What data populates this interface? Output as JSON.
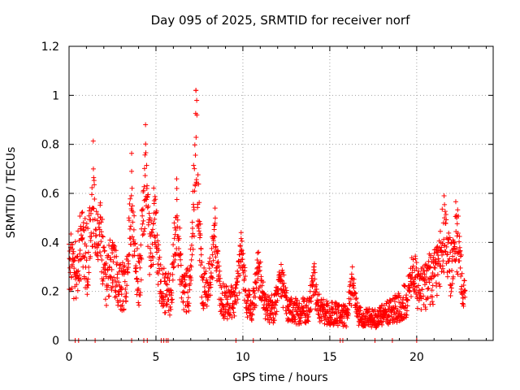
{
  "chart_data": {
    "type": "scatter",
    "title": "Day 095 of 2025, SRMTID for receiver norf",
    "xlabel": "GPS time / hours",
    "ylabel": "SRMTID / TECUs",
    "xlim": [
      0,
      24.4
    ],
    "ylim": [
      0,
      1.2
    ],
    "xticks": [
      0,
      5,
      10,
      15,
      20
    ],
    "xtick_labels": [
      "0",
      "5",
      "10",
      "15",
      "20"
    ],
    "yticks": [
      0,
      0.2,
      0.4,
      0.6,
      0.8,
      1.0,
      1.2
    ],
    "ytick_labels": [
      "0",
      "0.2",
      "0.4",
      "0.6",
      "0.8",
      "1",
      "1.2"
    ],
    "grid": true,
    "marker": "+",
    "series": [
      {
        "name": "SRMTID",
        "color": "#ff0000",
        "profile_x": [
          0,
          0.5,
          1.0,
          1.5,
          2.0,
          2.5,
          3.0,
          3.5,
          4.0,
          4.5,
          5.0,
          5.5,
          6.0,
          6.5,
          7.0,
          7.5,
          8.0,
          8.5,
          9.0,
          9.5,
          10.0,
          10.5,
          11.0,
          11.5,
          12.0,
          12.5,
          13.0,
          13.5,
          14.0,
          14.5,
          15.0,
          15.5,
          16.0,
          16.5,
          17.0,
          17.5,
          18.0,
          18.5,
          19.0,
          19.5,
          20.0,
          20.5,
          21.0,
          21.5,
          22.0,
          22.5,
          22.8
        ],
        "profile_y": [
          0.24,
          0.27,
          0.33,
          0.32,
          0.25,
          0.22,
          0.22,
          0.22,
          0.24,
          0.3,
          0.25,
          0.2,
          0.18,
          0.2,
          0.21,
          0.23,
          0.22,
          0.18,
          0.16,
          0.15,
          0.15,
          0.14,
          0.14,
          0.13,
          0.13,
          0.13,
          0.12,
          0.12,
          0.12,
          0.12,
          0.11,
          0.11,
          0.1,
          0.1,
          0.09,
          0.09,
          0.1,
          0.12,
          0.14,
          0.17,
          0.2,
          0.23,
          0.26,
          0.28,
          0.28,
          0.24,
          0.18
        ],
        "spikes": [
          {
            "x": 0.1,
            "y": 0.38
          },
          {
            "x": 0.7,
            "y": 0.43
          },
          {
            "x": 1.4,
            "y": 0.7
          },
          {
            "x": 1.8,
            "y": 0.5
          },
          {
            "x": 2.5,
            "y": 0.4
          },
          {
            "x": 3.6,
            "y": 0.69
          },
          {
            "x": 4.4,
            "y": 0.88
          },
          {
            "x": 4.9,
            "y": 0.57
          },
          {
            "x": 6.2,
            "y": 0.62
          },
          {
            "x": 7.3,
            "y": 1.02
          },
          {
            "x": 8.4,
            "y": 0.54
          },
          {
            "x": 9.9,
            "y": 0.44
          },
          {
            "x": 10.9,
            "y": 0.36
          },
          {
            "x": 12.2,
            "y": 0.31
          },
          {
            "x": 14.1,
            "y": 0.3
          },
          {
            "x": 16.3,
            "y": 0.3
          },
          {
            "x": 19.8,
            "y": 0.33
          },
          {
            "x": 21.6,
            "y": 0.5
          },
          {
            "x": 22.3,
            "y": 0.5
          }
        ],
        "zero_points_x": [
          0.35,
          0.55,
          1.5,
          3.6,
          4.3,
          4.5,
          5.3,
          5.45,
          5.6,
          5.7,
          9.6,
          10.6,
          15.6,
          15.75,
          17.6,
          18.6,
          20.0
        ]
      }
    ]
  }
}
